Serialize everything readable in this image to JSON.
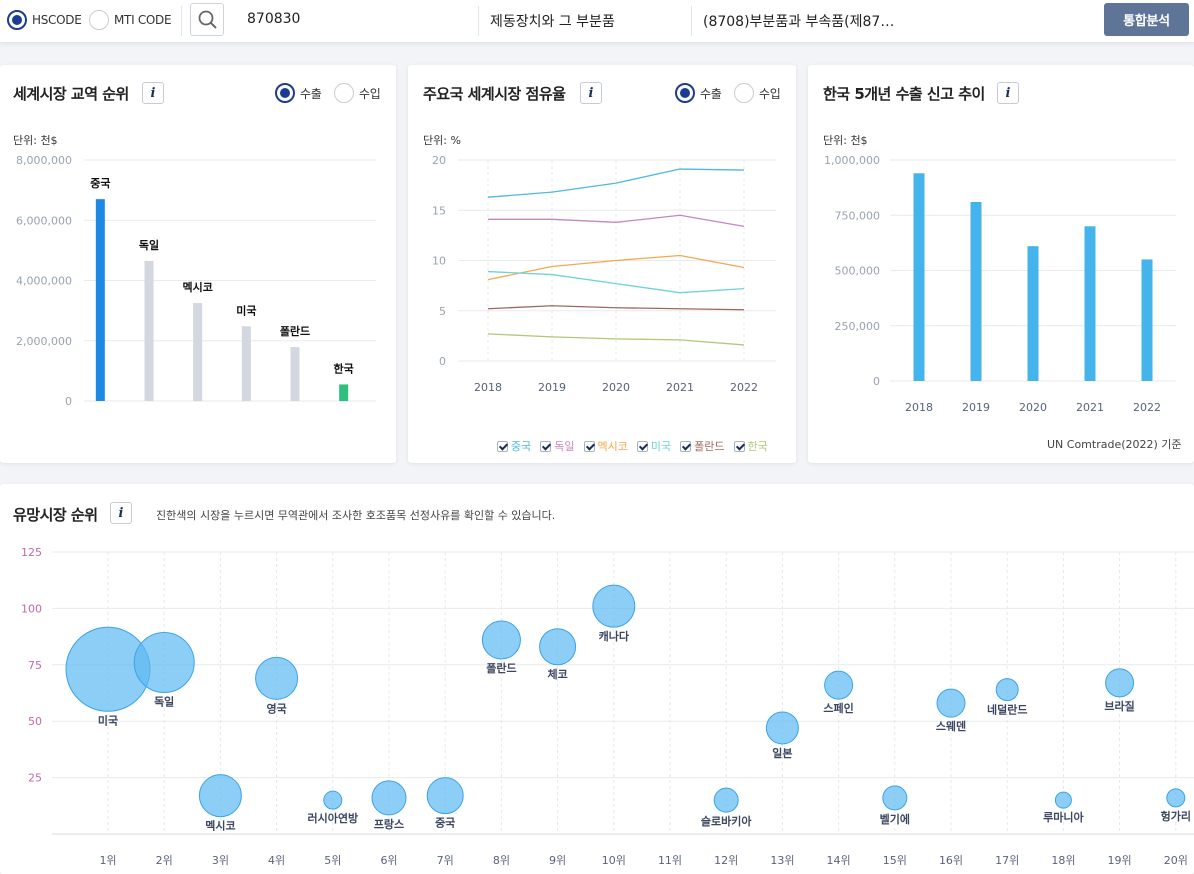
{
  "search": {
    "code_type_options": [
      "HSCODE",
      "MTI CODE"
    ],
    "selected_code_type": "HSCODE",
    "code_value": "870830",
    "product_name": "제동장치와 그 부분품",
    "category_name": "(8708)부분품과 부속품(제87…",
    "analyze_button": "통합분석"
  },
  "colors": {
    "accent": "#1e88e5",
    "korea": "#2dbf7d",
    "other_bar": "#d3d7df",
    "bubble": "#5cb9f2",
    "button": "#5f7597"
  },
  "ranking_card": {
    "title": "세계시장 교역 순위",
    "radio_export": "수출",
    "radio_import": "수입",
    "selected": "수출",
    "unit": "단위: 천$"
  },
  "share_card": {
    "title": "주요국 세계시장 점유율",
    "radio_export": "수출",
    "radio_import": "수입",
    "selected": "수출",
    "unit": "단위: %"
  },
  "korea_card": {
    "title": "한국 5개년 수출 신고 추이",
    "unit": "단위: 천$",
    "source": "UN Comtrade(2022) 기준"
  },
  "promising_card": {
    "title": "유망시장 순위",
    "description": "진한색의 시장을 누르시면 무역관에서 조사한 호조품목 선정사유를 확인할 수 있습니다."
  },
  "chart_data": [
    {
      "type": "bar",
      "categories": [
        "중국",
        "독일",
        "멕시코",
        "미국",
        "폴란드",
        "한국"
      ],
      "values": [
        6700000,
        4650000,
        3250000,
        2480000,
        1790000,
        550000
      ],
      "colors": [
        "#1e88e5",
        "#d3d7df",
        "#d3d7df",
        "#d3d7df",
        "#d3d7df",
        "#2dbf7d"
      ],
      "ylim": [
        0,
        8000000
      ],
      "yticks": [
        "0",
        "2,000,000",
        "4,000,000",
        "6,000,000",
        "8,000,000"
      ],
      "grid": true
    },
    {
      "type": "line",
      "x": [
        "2018",
        "2019",
        "2020",
        "2021",
        "2022"
      ],
      "series": [
        {
          "name": "중국",
          "color": "#50b7e0",
          "values": [
            16.3,
            16.8,
            17.7,
            19.1,
            19.0
          ]
        },
        {
          "name": "독일",
          "color": "#c586c0",
          "values": [
            14.1,
            14.1,
            13.8,
            14.5,
            13.4
          ]
        },
        {
          "name": "멕시코",
          "color": "#f3a94b",
          "values": [
            8.1,
            9.4,
            10.0,
            10.5,
            9.3
          ]
        },
        {
          "name": "미국",
          "color": "#6cd3d8",
          "values": [
            8.9,
            8.6,
            7.7,
            6.8,
            7.2
          ]
        },
        {
          "name": "폴란드",
          "color": "#9b6a5f",
          "values": [
            5.2,
            5.5,
            5.3,
            5.2,
            5.1
          ]
        },
        {
          "name": "한국",
          "color": "#b2c77a",
          "values": [
            2.7,
            2.4,
            2.2,
            2.1,
            1.6
          ]
        }
      ],
      "ylim": [
        0,
        20
      ],
      "yticks": [
        "0",
        "5",
        "10",
        "15",
        "20"
      ],
      "grid": true
    },
    {
      "type": "bar",
      "categories": [
        "2018",
        "2019",
        "2020",
        "2021",
        "2022"
      ],
      "values": [
        940000,
        810000,
        610000,
        700000,
        550000
      ],
      "color": "#46b4ec",
      "ylim": [
        0,
        1000000
      ],
      "yticks": [
        "0",
        "250,000",
        "500,000",
        "750,000",
        "1,000,000"
      ],
      "grid": true
    },
    {
      "type": "scatter",
      "x": [
        "1위",
        "2위",
        "3위",
        "4위",
        "5위",
        "6위",
        "7위",
        "8위",
        "9위",
        "10위",
        "11위",
        "12위",
        "13위",
        "14위",
        "15위",
        "16위",
        "17위",
        "18위",
        "19위",
        "20위"
      ],
      "ylim": [
        0,
        125
      ],
      "yticks": [
        "25",
        "50",
        "75",
        "100",
        "125"
      ],
      "points": [
        {
          "rank": 1,
          "name": "미국",
          "y": 73,
          "size": 42
        },
        {
          "rank": 2,
          "name": "독일",
          "y": 76,
          "size": 30
        },
        {
          "rank": 3,
          "name": "멕시코",
          "y": 17,
          "size": 21
        },
        {
          "rank": 4,
          "name": "영국",
          "y": 69,
          "size": 21
        },
        {
          "rank": 5,
          "name": "러시아연방",
          "y": 15,
          "size": 9
        },
        {
          "rank": 6,
          "name": "프랑스",
          "y": 16,
          "size": 17
        },
        {
          "rank": 7,
          "name": "중국",
          "y": 17,
          "size": 18
        },
        {
          "rank": 8,
          "name": "폴란드",
          "y": 86,
          "size": 19
        },
        {
          "rank": 9,
          "name": "체코",
          "y": 83,
          "size": 18
        },
        {
          "rank": 10,
          "name": "캐나다",
          "y": 101,
          "size": 21
        },
        {
          "rank": 12,
          "name": "슬로바키아",
          "y": 15,
          "size": 12
        },
        {
          "rank": 13,
          "name": "일본",
          "y": 47,
          "size": 16
        },
        {
          "rank": 14,
          "name": "스페인",
          "y": 66,
          "size": 14
        },
        {
          "rank": 15,
          "name": "벨기에",
          "y": 16,
          "size": 12
        },
        {
          "rank": 16,
          "name": "스웨덴",
          "y": 58,
          "size": 14
        },
        {
          "rank": 17,
          "name": "네덜란드",
          "y": 64,
          "size": 11
        },
        {
          "rank": 18,
          "name": "루마니아",
          "y": 15,
          "size": 8
        },
        {
          "rank": 19,
          "name": "브라질",
          "y": 67,
          "size": 14
        },
        {
          "rank": 20,
          "name": "헝가리",
          "y": 16,
          "size": 9
        }
      ],
      "grid": true
    }
  ]
}
